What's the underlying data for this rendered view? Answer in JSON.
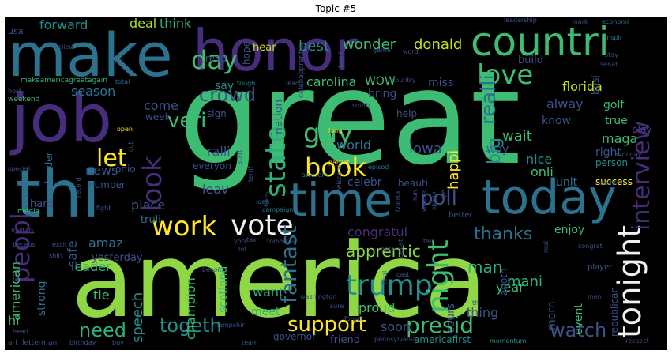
{
  "title": "Topic #5",
  "words": {
    "great": "great",
    "america": "america",
    "make": "make",
    "honor": "honor",
    "job": "job",
    "thi": "thi",
    "countri": "countri",
    "today": "today",
    "time": "time",
    "vote": "vote",
    "work": "work",
    "tonight": "tonight",
    "interview": "interview",
    "trump": "trump",
    "night": "night",
    "book": "book",
    "state": "state",
    "love": "love",
    "look": "look",
    "day": "day",
    "guy": "guy",
    "let": "let",
    "peopl": "peopl",
    "support": "support",
    "presid": "presid",
    "togeth": "togeth",
    "need": "need",
    "watch": "watch",
    "fantast": "fantast",
    "veri": "veri",
    "crowd": "crowd",
    "poll": "poll",
    "thanks": "thanks",
    "realli": "realli",
    "deal": "deal",
    "think": "think",
    "forward": "forward",
    "say": "say",
    "best": "best",
    "wonder": "wonder",
    "donald": "donald",
    "florida": "florida",
    "alway": "alway",
    "golf": "golf",
    "true": "true",
    "know": "know",
    "big": "big",
    "wait": "wait",
    "maga": "maga",
    "right": "right",
    "person": "person",
    "play": "play",
    "nice": "nice",
    "onli": "onli",
    "happi": "happi",
    "iowa": "iowa",
    "world": "world",
    "celebr": "celebr",
    "beauti": "beauti",
    "unit": "unit",
    "success": "success",
    "congratul": "congratul",
    "enjoy": "enjoy",
    "apprentic": "apprentic",
    "man": "man",
    "mani": "mani",
    "year": "year",
    "proud": "proud",
    "thing": "thing",
    "soon": "soon",
    "meet": "meet",
    "speech": "speech",
    "want": "want",
    "scotland": "scotland",
    "leader": "leader",
    "american": "american",
    "strong": "strong",
    "tie": "tie",
    "champion": "champion",
    "hi": "hi",
    "amaz": "amaz",
    "yesterday": "yesterday",
    "safe": "safe",
    "hard": "hard",
    "place": "place",
    "truli": "truli",
    "leav": "leav",
    "news": "news",
    "ohio": "ohio",
    "number": "number",
    "ralli": "ralli",
    "everyon": "everyon",
    "come": "come",
    "week": "week",
    "season": "season",
    "border": "border",
    "carolina": "carolina",
    "wow": "WOW",
    "nation": "nation",
    "bring": "bring",
    "miss": "miss",
    "help": "help",
    "way": "way",
    "build": "build",
    "hope": "hope",
    "read": "read",
    "hear": "hear",
    "usa": "usa",
    "makeamericagreatagain": "makeamericagreatagain",
    "weekend": "weekend",
    "americafirst": "americafirst",
    "friend": "friend",
    "governor": "governor",
    "republican": "republican",
    "respect": "respect",
    "militari": "militari",
    "media": "media",
    "art": "art",
    "letterman": "letterman",
    "birthday": "birthday",
    "buy": "buy",
    "team": "team",
    "momentum": "momentum",
    "pennsylvania": "pennsylvania",
    "cours": "cours",
    "event": "event",
    "morn": "morn",
    "better": "better",
    "anoth": "anoth",
    "player": "player",
    "busi": "busi",
    "sign": "sign",
    "open": "open",
    "tough": "tough",
    "total": "total",
    "special": "special",
    "host": "host",
    "believ": "believ",
    "leadership": "leadership",
    "mark": "mark",
    "economi": "economi",
    "inspir": "inspir",
    "stay": "stay",
    "senat": "senat",
    "famili": "famili",
    "word": "word",
    "game": "game",
    "celebapprentic": "celebapprentic",
    "lead": "lead",
    "country": "country",
    "south": "south",
    "long": "long",
    "patriot": "patriot",
    "episod": "episod",
    "awesom": "awesom",
    "idea": "idea",
    "campaign": "campaign",
    "fight": "fight",
    "becaus": "becaus",
    "excit": "excit",
    "york": "york",
    "lot": "lot",
    "tax": "tax",
    "tomorrow": "tomorrow",
    "hotel": "hotel",
    "cast": "cast",
    "debat": "debat",
    "talk": "talk",
    "run": "run",
    "congrat": "congrat",
    "men": "men",
    "point": "point",
    "monday": "monday",
    "sure": "sure",
    "forget": "forget",
    "washington": "washington",
    "hampshir": "hampshir",
    "shirt": "shirt",
    "head": "head",
    "becom": "becom",
    "record": "record",
    "cut": "cut",
    "start": "start",
    "wisconsin": "wisconsin",
    "final": "final",
    "ivanka": "ivanka",
    "winner": "winner",
    "speak": "speak",
    "ye": "ye",
    "th": "th",
    "real": "real",
    "terrif": "terrif",
    "hous": "hous"
  },
  "colors": {
    "green_bright": "#8fd744",
    "green": "#3dbc74",
    "teal_green": "#2db27d",
    "teal": "#21908d",
    "blue_teal": "#2c728e",
    "blue": "#3b528b",
    "purple": "#472d7b",
    "dark_purple": "#440154",
    "yellow": "#fde725",
    "yellow_green": "#c8e020",
    "lime": "#addc30"
  }
}
